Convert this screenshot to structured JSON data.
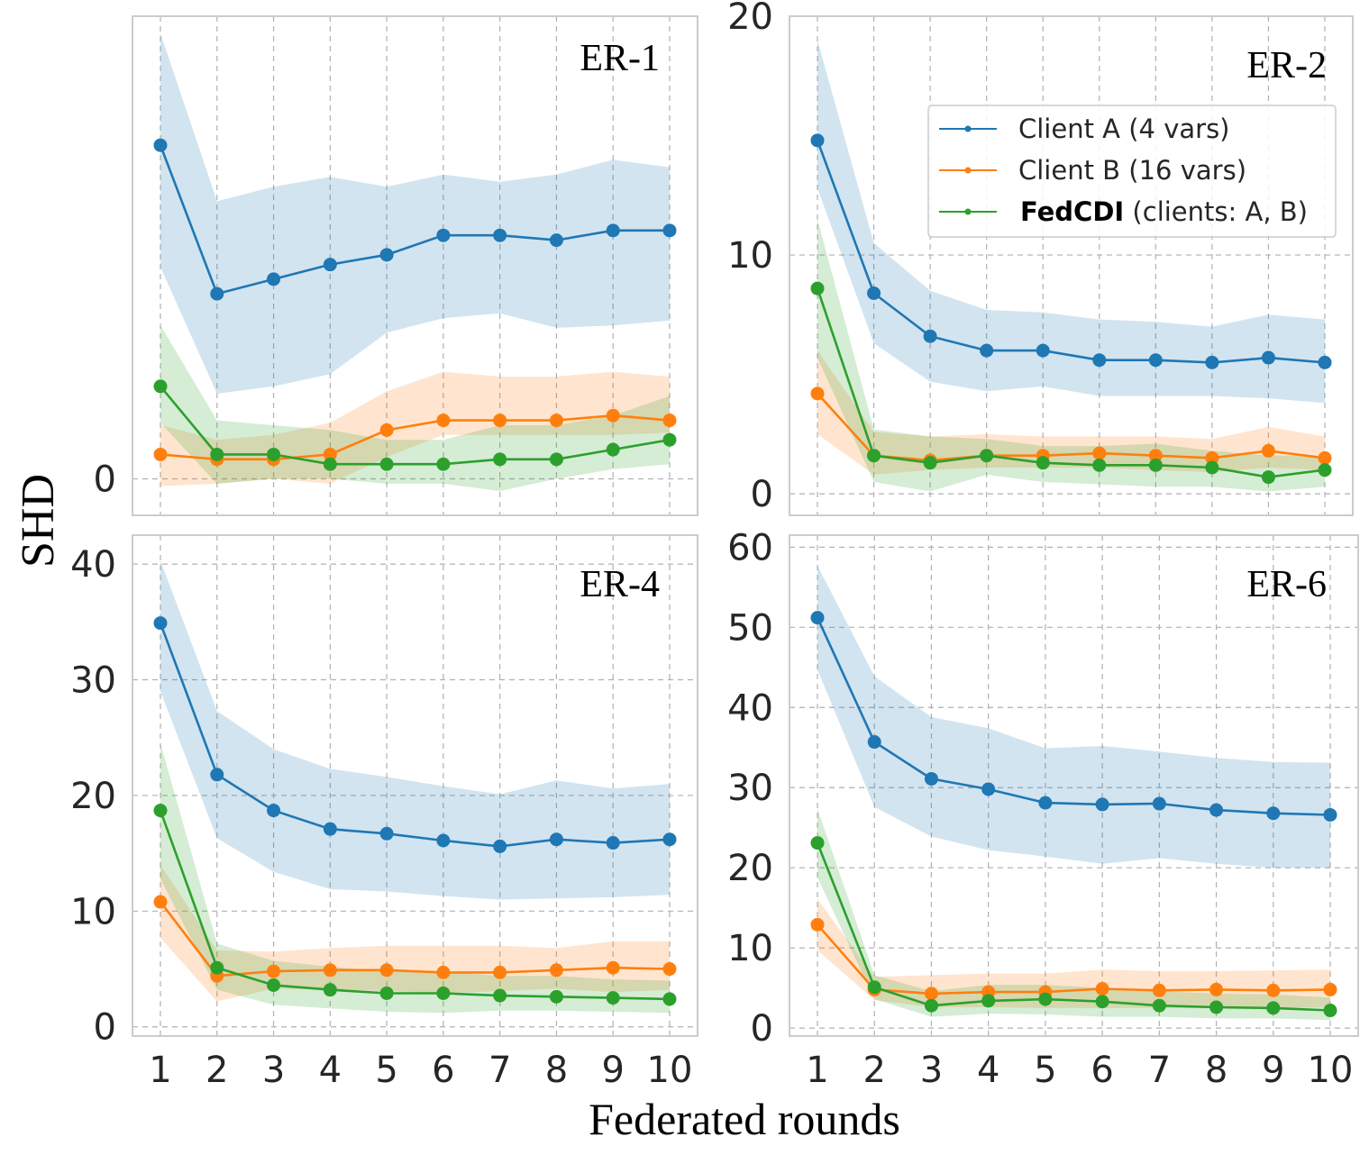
{
  "figure": {
    "ylabel": "SHD",
    "xlabel": "Federated rounds"
  },
  "legend": {
    "items": [
      {
        "key": "A",
        "name": "Client A",
        "suffix": " (4 vars)",
        "bold": false,
        "color": "#1f77b4"
      },
      {
        "key": "B",
        "name": "Client B",
        "suffix": " (16 vars)",
        "bold": false,
        "color": "#ff7f0e"
      },
      {
        "key": "F",
        "name": "FedCDI",
        "suffix": " (clients: A, B)",
        "bold": true,
        "color": "#2ca02c"
      }
    ]
  },
  "colors": {
    "A": "#1f77b4",
    "B": "#ff7f0e",
    "F": "#2ca02c"
  },
  "chart_data": [
    {
      "type": "line",
      "title": "ER-1",
      "xlabel": "",
      "ylabel": "",
      "x": [
        1,
        2,
        3,
        4,
        5,
        6,
        7,
        8,
        9,
        10
      ],
      "xticks": [],
      "yticks": [
        0
      ],
      "ylim": [
        -1.5,
        19
      ],
      "series": [
        {
          "key": "A",
          "name": "Client A (4 vars)",
          "values": [
            13.7,
            7.6,
            8.2,
            8.8,
            9.2,
            10.0,
            10.0,
            9.8,
            10.2,
            10.2
          ],
          "lower": [
            8.7,
            3.5,
            3.8,
            4.3,
            6.0,
            6.6,
            6.8,
            6.2,
            6.3,
            6.5
          ],
          "upper": [
            18.3,
            11.4,
            12.0,
            12.4,
            12.0,
            12.5,
            12.2,
            12.5,
            13.1,
            12.8
          ]
        },
        {
          "key": "B",
          "name": "Client B (16 vars)",
          "values": [
            1.0,
            0.8,
            0.8,
            1.0,
            2.0,
            2.4,
            2.4,
            2.4,
            2.6,
            2.4
          ],
          "lower": [
            -0.3,
            -0.2,
            0.0,
            -0.2,
            0.9,
            1.8,
            1.8,
            1.8,
            1.8,
            1.9
          ],
          "upper": [
            2.2,
            1.6,
            1.8,
            2.3,
            3.6,
            4.4,
            4.2,
            4.2,
            4.4,
            4.2
          ]
        },
        {
          "key": "F",
          "name": "FedCDI (clients: A, B)",
          "values": [
            3.8,
            1.0,
            1.0,
            0.6,
            0.6,
            0.6,
            0.8,
            0.8,
            1.2,
            1.6
          ],
          "lower": [
            2.3,
            -0.2,
            0.0,
            0.0,
            -0.2,
            -0.2,
            -0.5,
            0.0,
            0.4,
            0.6
          ],
          "upper": [
            6.3,
            2.4,
            2.2,
            2.0,
            1.6,
            1.6,
            2.2,
            2.2,
            2.6,
            3.4
          ]
        }
      ]
    },
    {
      "type": "line",
      "title": "ER-2",
      "xlabel": "",
      "ylabel": "",
      "x": [
        1,
        2,
        3,
        4,
        5,
        6,
        7,
        8,
        9,
        10
      ],
      "xticks": [],
      "yticks": [
        0,
        10,
        20
      ],
      "ylim": [
        -0.9,
        20
      ],
      "series": [
        {
          "key": "A",
          "name": "Client A (4 vars)",
          "values": [
            14.8,
            8.4,
            6.6,
            6.0,
            6.0,
            5.6,
            5.6,
            5.5,
            5.7,
            5.5
          ],
          "lower": [
            12.8,
            6.3,
            4.7,
            4.3,
            4.5,
            4.1,
            4.1,
            4.1,
            4.0,
            3.8
          ],
          "upper": [
            19.0,
            10.5,
            8.5,
            7.7,
            7.6,
            7.3,
            7.2,
            7.0,
            7.5,
            7.3
          ]
        },
        {
          "key": "B",
          "name": "Client B (16 vars)",
          "values": [
            4.2,
            1.6,
            1.4,
            1.6,
            1.6,
            1.7,
            1.6,
            1.5,
            1.8,
            1.5
          ],
          "lower": [
            2.5,
            0.8,
            1.0,
            1.1,
            1.1,
            1.1,
            1.0,
            0.9,
            1.1,
            1.0
          ],
          "upper": [
            6.0,
            2.6,
            2.4,
            2.5,
            2.4,
            2.4,
            2.4,
            2.3,
            2.8,
            2.4
          ]
        },
        {
          "key": "F",
          "name": "FedCDI (clients: A, B)",
          "values": [
            8.6,
            1.6,
            1.3,
            1.6,
            1.3,
            1.2,
            1.2,
            1.1,
            0.7,
            1.0
          ],
          "lower": [
            5.7,
            0.5,
            0.1,
            0.8,
            0.5,
            0.4,
            0.3,
            0.3,
            0.1,
            0.3
          ],
          "upper": [
            11.5,
            2.7,
            2.4,
            2.3,
            2.0,
            2.0,
            2.1,
            1.8,
            1.6,
            1.6
          ]
        }
      ]
    },
    {
      "type": "line",
      "title": "ER-4",
      "xlabel": "",
      "ylabel": "",
      "x": [
        1,
        2,
        3,
        4,
        5,
        6,
        7,
        8,
        9,
        10
      ],
      "xticks": [
        1,
        2,
        3,
        4,
        5,
        6,
        7,
        8,
        9,
        10
      ],
      "yticks": [
        0,
        10,
        20,
        30,
        40
      ],
      "ylim": [
        -0.8,
        42.5
      ],
      "series": [
        {
          "key": "A",
          "name": "Client A (4 vars)",
          "values": [
            34.9,
            21.8,
            18.7,
            17.1,
            16.7,
            16.1,
            15.6,
            16.2,
            15.9,
            16.2
          ],
          "lower": [
            29.0,
            16.3,
            13.4,
            11.9,
            11.7,
            11.3,
            11.0,
            11.1,
            11.2,
            11.4
          ],
          "upper": [
            40.3,
            27.3,
            24.0,
            22.3,
            21.6,
            20.8,
            20.1,
            21.3,
            20.6,
            21.0
          ]
        },
        {
          "key": "B",
          "name": "Client B (16 vars)",
          "values": [
            10.8,
            4.4,
            4.8,
            4.9,
            4.9,
            4.7,
            4.7,
            4.9,
            5.1,
            5.0
          ],
          "lower": [
            7.7,
            2.2,
            3.3,
            3.2,
            3.1,
            2.9,
            3.1,
            3.3,
            3.0,
            3.2
          ],
          "upper": [
            14.0,
            6.6,
            6.5,
            6.8,
            7.0,
            7.0,
            7.0,
            6.8,
            7.4,
            7.4
          ]
        },
        {
          "key": "F",
          "name": "FedCDI (clients: A, B)",
          "values": [
            18.7,
            5.1,
            3.6,
            3.2,
            2.9,
            2.9,
            2.7,
            2.6,
            2.5,
            2.4
          ],
          "lower": [
            12.8,
            3.2,
            1.9,
            1.6,
            1.3,
            1.2,
            1.4,
            1.4,
            1.3,
            1.2
          ],
          "upper": [
            24.5,
            7.2,
            5.7,
            5.2,
            4.8,
            4.8,
            4.4,
            4.4,
            4.1,
            4.0
          ]
        }
      ]
    },
    {
      "type": "line",
      "title": "ER-6",
      "xlabel": "",
      "ylabel": "",
      "x": [
        1,
        2,
        3,
        4,
        5,
        6,
        7,
        8,
        9,
        10
      ],
      "xticks": [
        1,
        2,
        3,
        4,
        5,
        6,
        7,
        8,
        9,
        10
      ],
      "yticks": [
        0,
        10,
        20,
        30,
        40,
        50,
        60
      ],
      "ylim": [
        -1.0,
        61.5
      ],
      "series": [
        {
          "key": "A",
          "name": "Client A (4 vars)",
          "values": [
            51.2,
            35.7,
            31.1,
            29.8,
            28.1,
            27.9,
            28.0,
            27.2,
            26.8,
            26.6
          ],
          "lower": [
            44.7,
            27.6,
            23.9,
            22.2,
            21.4,
            20.5,
            21.2,
            20.5,
            20.0,
            20.0
          ],
          "upper": [
            57.7,
            43.9,
            38.8,
            37.4,
            34.9,
            35.2,
            34.5,
            33.7,
            33.2,
            33.1
          ]
        },
        {
          "key": "B",
          "name": "Client B (16 vars)",
          "values": [
            12.9,
            4.8,
            4.3,
            4.5,
            4.5,
            4.9,
            4.7,
            4.8,
            4.7,
            4.8
          ],
          "lower": [
            9.7,
            3.5,
            2.6,
            2.6,
            2.5,
            2.5,
            2.5,
            2.5,
            2.5,
            2.6
          ],
          "upper": [
            16.1,
            6.4,
            6.6,
            6.8,
            6.8,
            7.3,
            7.1,
            7.1,
            7.2,
            7.3
          ]
        },
        {
          "key": "F",
          "name": "FedCDI (clients: A, B)",
          "values": [
            23.1,
            5.1,
            2.8,
            3.4,
            3.6,
            3.3,
            2.8,
            2.6,
            2.5,
            2.2
          ],
          "lower": [
            18.8,
            3.6,
            1.4,
            1.8,
            1.7,
            1.4,
            1.4,
            1.2,
            1.2,
            1.0
          ],
          "upper": [
            27.4,
            6.6,
            4.6,
            5.4,
            5.4,
            5.0,
            4.6,
            4.3,
            4.2,
            3.8
          ]
        }
      ]
    }
  ]
}
